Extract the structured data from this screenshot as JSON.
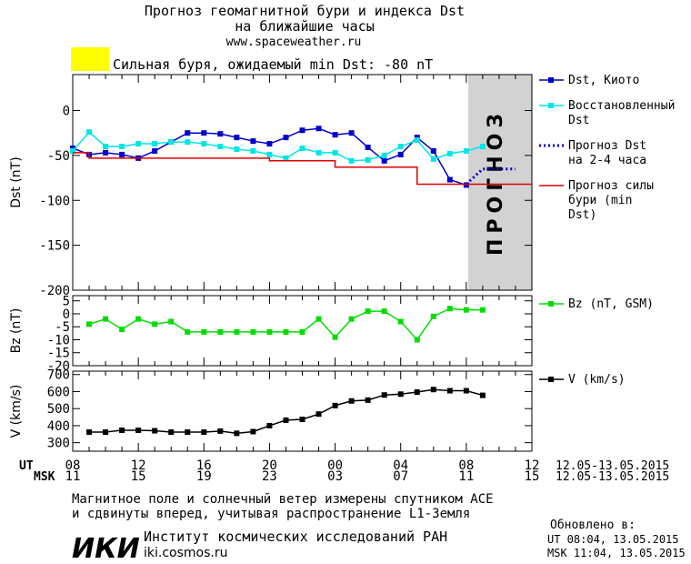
{
  "header": {
    "title_line1": "Прогноз геомагнитной бури и индекса Dst",
    "title_line2": "на ближайшие часы",
    "site": "www.spaceweather.ru",
    "storm_label": "Сильная буря, ожидаемый min Dst: -80 nT",
    "storm_color": "#ffff00"
  },
  "forecast_band_label": "ПРОГНОЗ",
  "time_axis": {
    "ut_label": "UT",
    "msk_label": "MSK",
    "ut_ticks": [
      "08",
      "12",
      "16",
      "20",
      "00",
      "04",
      "08",
      "12"
    ],
    "msk_ticks": [
      "11",
      "15",
      "19",
      "23",
      "03",
      "07",
      "11",
      "15"
    ],
    "date_range_ut": "12.05-13.05.2015",
    "date_range_msk": "12.05-13.05.2015"
  },
  "footer": {
    "note_line1": "Магнитное поле и солнечный ветер измерены спутником ACE",
    "note_line2": "и сдвинуты вперед, учитывая распространение L1-Земля",
    "logo_text": "ИКИ",
    "institute": "Институт космических исследований РАН",
    "institute_url": "iki.cosmos.ru",
    "updated_label": "Обновлено в:",
    "updated_ut": "UT  08:04, 13.05.2015",
    "updated_msk": "MSK 11:04, 13.05.2015"
  },
  "chart_data": [
    {
      "type": "line",
      "ylabel": "Dst (nT)",
      "ylim": [
        -200,
        40
      ],
      "yticks": [
        0,
        -50,
        -100,
        -150,
        -200
      ],
      "xlim_hours": [
        0,
        28
      ],
      "forecast_band_hours": [
        24,
        28
      ],
      "series": [
        {
          "name": "Dst, Киото",
          "color": "#0000cc",
          "style": "line-square",
          "x": [
            0,
            1,
            2,
            3,
            4,
            5,
            6,
            7,
            8,
            9,
            10,
            11,
            12,
            13,
            14,
            15,
            16,
            17,
            18,
            19,
            20,
            21,
            22,
            23,
            24
          ],
          "y": [
            -42,
            -49,
            -47,
            -49,
            -53,
            -45,
            -35,
            -25,
            -25,
            -26,
            -30,
            -34,
            -37,
            -30,
            -22,
            -20,
            -27,
            -25,
            -41,
            -56,
            -49,
            -30,
            -45,
            -77,
            -83
          ]
        },
        {
          "name": "Восстановленный Dst",
          "color": "#00e5e5",
          "style": "line-square",
          "x": [
            0,
            1,
            2,
            3,
            4,
            5,
            6,
            7,
            8,
            9,
            10,
            11,
            12,
            13,
            14,
            15,
            16,
            17,
            18,
            19,
            20,
            21,
            22,
            23,
            24,
            25
          ],
          "y": [
            -45,
            -24,
            -40,
            -40,
            -37,
            -37,
            -35,
            -35,
            -37,
            -40,
            -43,
            -45,
            -49,
            -53,
            -42,
            -47,
            -47,
            -56,
            -55,
            -50,
            -40,
            -33,
            -54,
            -48,
            -45,
            -40
          ]
        },
        {
          "name": "Прогноз Dst на 2-4 часа",
          "color": "#0000cc",
          "style": "dotted",
          "x": [
            24,
            25,
            26,
            27
          ],
          "y": [
            -82,
            -65,
            -65,
            -65
          ]
        },
        {
          "name": "Прогноз силы бури (min Dst)",
          "color": "#dd0000",
          "style": "step",
          "x": [
            0,
            1,
            2,
            3,
            4,
            5,
            6,
            7,
            8,
            9,
            10,
            11,
            12,
            13,
            14,
            15,
            16,
            17,
            18,
            19,
            20,
            21,
            22,
            23,
            24,
            25,
            26,
            27,
            28
          ],
          "y": [
            -47,
            -53,
            -53,
            -53,
            -53,
            -53,
            -53,
            -53,
            -53,
            -53,
            -53,
            -53,
            -56,
            -56,
            -56,
            -56,
            -63,
            -63,
            -63,
            -63,
            -63,
            -82,
            -82,
            -82,
            -82,
            -82,
            -82,
            -82,
            -82
          ]
        }
      ]
    },
    {
      "type": "line",
      "ylabel": "Bz (nT)",
      "ylim": [
        -20,
        7
      ],
      "yticks": [
        5,
        0,
        -5,
        -10,
        -15,
        -20
      ],
      "xlim_hours": [
        0,
        28
      ],
      "series": [
        {
          "name": "Bz (nT, GSM)",
          "color": "#00dd00",
          "style": "line-square",
          "x": [
            1,
            2,
            3,
            4,
            5,
            6,
            7,
            8,
            9,
            10,
            11,
            12,
            13,
            14,
            15,
            16,
            17,
            18,
            19,
            20,
            21,
            22,
            23,
            24,
            25
          ],
          "y": [
            -4,
            -2,
            -6,
            -2,
            -4,
            -3,
            -7,
            -7,
            -7,
            -7,
            -7,
            -7,
            -7,
            -7,
            -2,
            -9,
            -2,
            1,
            1,
            -3,
            -10,
            -1,
            2,
            1.5,
            1.5
          ]
        }
      ]
    },
    {
      "type": "line",
      "ylabel": "V (km/s)",
      "ylim": [
        250,
        720
      ],
      "yticks": [
        700,
        600,
        500,
        400,
        300
      ],
      "xlim_hours": [
        0,
        28
      ],
      "series": [
        {
          "name": "V (km/s)",
          "color": "#000000",
          "style": "line-square",
          "x": [
            1,
            2,
            3,
            4,
            5,
            6,
            7,
            8,
            9,
            10,
            11,
            12,
            13,
            14,
            15,
            16,
            17,
            18,
            19,
            20,
            21,
            22,
            23,
            24,
            25
          ],
          "y": [
            362,
            362,
            373,
            373,
            370,
            362,
            362,
            362,
            368,
            355,
            365,
            400,
            432,
            437,
            468,
            518,
            545,
            550,
            580,
            585,
            597,
            612,
            605,
            605,
            578
          ]
        }
      ]
    }
  ]
}
